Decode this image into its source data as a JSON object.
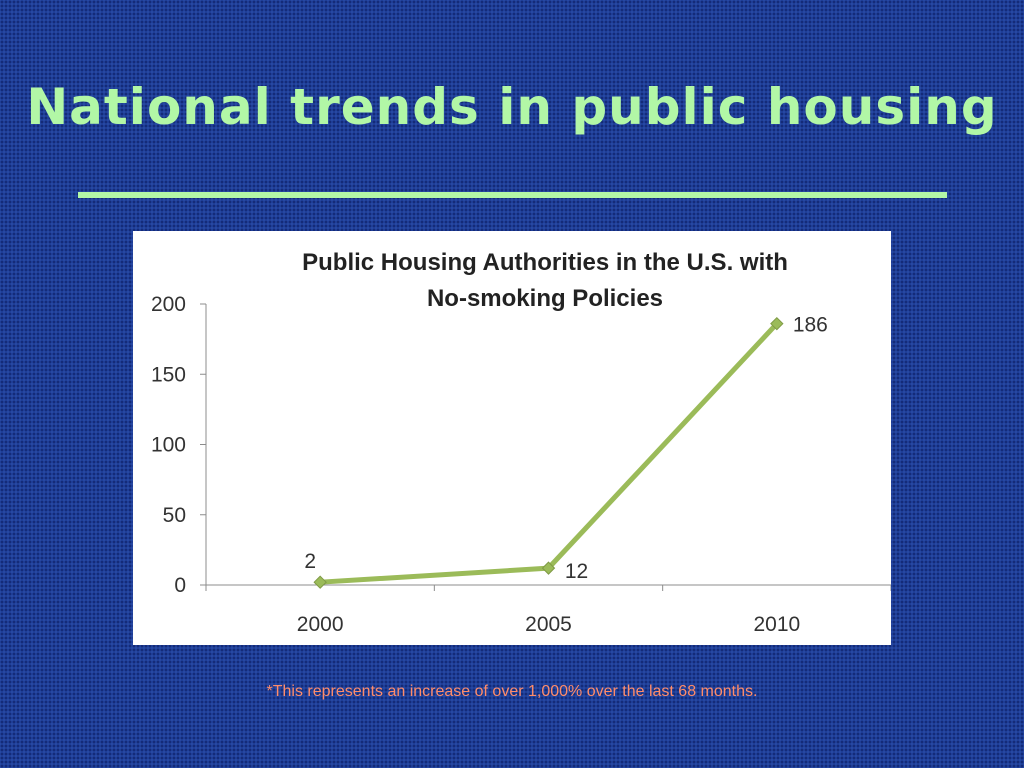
{
  "slide": {
    "title": "National trends in public housing",
    "footnote": "*This represents an increase of over 1,000% over the last 68 months."
  },
  "colors": {
    "background": "#1e3d96",
    "title": "#b2f7a6",
    "footnote": "#ff8c6a",
    "series_line": "#9bbb59",
    "axis": "#8c8c8c"
  },
  "chart_data": {
    "type": "line",
    "title_line1": "Public Housing Authorities in the U.S. with",
    "title_line2": "No-smoking Policies",
    "xlabel": "",
    "ylabel": "",
    "categories": [
      "2000",
      "2005",
      "2010"
    ],
    "values": [
      2,
      12,
      186
    ],
    "data_labels": [
      "2",
      "12",
      "186"
    ],
    "yticks": [
      "0",
      "50",
      "100",
      "150",
      "200"
    ],
    "ylim": [
      0,
      200
    ],
    "grid": false,
    "legend": false
  }
}
